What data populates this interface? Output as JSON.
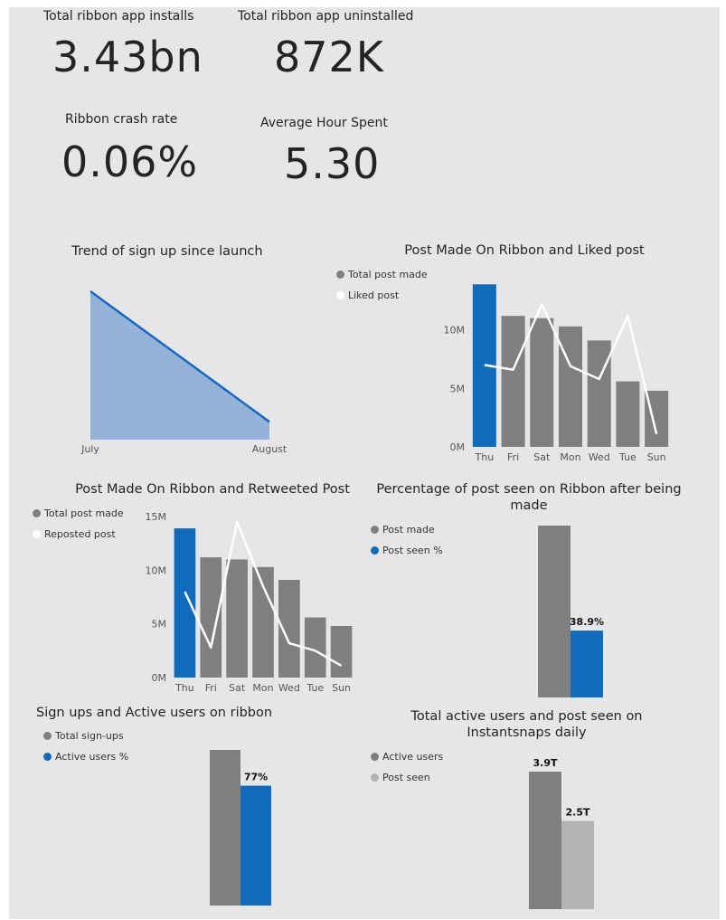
{
  "kpis": {
    "installs": {
      "label": "Total ribbon app installs",
      "value": "3.43bn"
    },
    "uninstalled": {
      "label": "Total ribbon app uninstalled",
      "value": "872K"
    },
    "crash": {
      "label": "Ribbon crash rate",
      "value": "0.06%"
    },
    "hours": {
      "label": "Average Hour Spent",
      "value": "5.30"
    }
  },
  "colors": {
    "gray": "#7f7f7f",
    "blue": "#0f6cbd",
    "light_gray": "#b3b3b3",
    "white": "#ffffff",
    "area_fill": "#93b4d8",
    "area_line": "#1a66c0"
  },
  "chart_data": [
    {
      "id": "signup_trend",
      "type": "area",
      "title": "Trend of sign up since launch",
      "categories": [
        "July",
        "August"
      ],
      "values": [
        100,
        12
      ],
      "ylim": [
        0,
        100
      ]
    },
    {
      "id": "post_liked",
      "type": "bar",
      "title": "Post Made On Ribbon and Liked post",
      "categories": [
        "Thu",
        "Fri",
        "Sat",
        "Mon",
        "Wed",
        "Tue",
        "Sun"
      ],
      "yticks": [
        "0M",
        "5M",
        "10M"
      ],
      "ylim": [
        0,
        14
      ],
      "legend": [
        "Total post made",
        "Liked post"
      ],
      "series": [
        {
          "name": "Total post made",
          "type": "bar",
          "values": [
            13.9,
            11.2,
            11.0,
            10.3,
            9.1,
            5.6,
            4.8
          ]
        },
        {
          "name": "Liked post",
          "type": "line",
          "values": [
            7.0,
            6.6,
            12.2,
            6.9,
            5.8,
            11.2,
            1.1
          ]
        }
      ]
    },
    {
      "id": "post_retweeted",
      "type": "bar",
      "title": "Post Made On Ribbon and Retweeted Post",
      "categories": [
        "Thu",
        "Fri",
        "Sat",
        "Mon",
        "Wed",
        "Tue",
        "Sun"
      ],
      "yticks": [
        "0M",
        "5M",
        "10M",
        "15M"
      ],
      "ylim": [
        0,
        15
      ],
      "legend": [
        "Total post made",
        "Reposted post"
      ],
      "series": [
        {
          "name": "Total post made",
          "type": "bar",
          "values": [
            13.9,
            11.2,
            11.0,
            10.3,
            9.1,
            5.6,
            4.8
          ]
        },
        {
          "name": "Reposted post",
          "type": "line",
          "values": [
            8.0,
            2.8,
            14.5,
            8.5,
            3.2,
            2.5,
            1.1
          ]
        }
      ]
    },
    {
      "id": "post_seen",
      "type": "bar",
      "title": "Percentage of post seen on Ribbon after being made",
      "legend": [
        "Post made",
        "Post seen %"
      ],
      "values": [
        100,
        38.9
      ],
      "labels": [
        "",
        "38.9%"
      ]
    },
    {
      "id": "signups_active",
      "type": "bar",
      "title": "Sign ups and Active users on ribbon",
      "legend": [
        "Total sign-ups",
        "Active users %"
      ],
      "values": [
        100,
        77
      ],
      "labels": [
        "",
        "77%"
      ]
    },
    {
      "id": "active_postseen",
      "type": "bar",
      "title": "Total active users and post seen on Instantsnaps daily",
      "legend": [
        "Active users",
        "Post seen"
      ],
      "values": [
        3.9,
        2.5
      ],
      "labels": [
        "3.9T",
        "2.5T"
      ]
    }
  ]
}
